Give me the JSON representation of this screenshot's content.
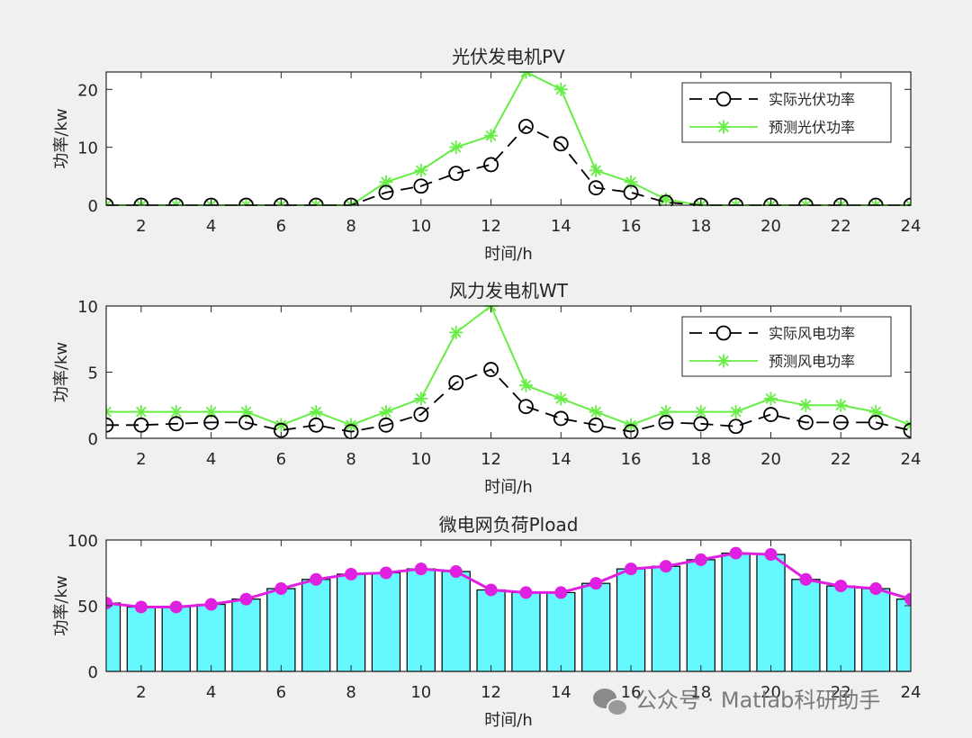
{
  "chart_data": [
    {
      "type": "line",
      "title": "光伏发电机PV",
      "xlabel": "时间/h",
      "ylabel": "功率/kw",
      "xlim": [
        1,
        24
      ],
      "ylim": [
        0,
        23
      ],
      "xticks": [
        2,
        4,
        6,
        8,
        10,
        12,
        14,
        16,
        18,
        20,
        22,
        24
      ],
      "yticks": [
        0,
        10,
        20
      ],
      "legend_position": "top-right",
      "x": [
        1,
        2,
        3,
        4,
        5,
        6,
        7,
        8,
        9,
        10,
        11,
        12,
        13,
        14,
        15,
        16,
        17,
        18,
        19,
        20,
        21,
        22,
        23,
        24
      ],
      "series": [
        {
          "name": "实际光伏功率",
          "marker": "circle",
          "line": "dashed",
          "color": "#000000",
          "values": [
            0,
            0,
            0,
            0,
            0,
            0,
            0,
            0,
            2.2,
            3.3,
            5.5,
            7.0,
            13.6,
            10.6,
            3.0,
            2.2,
            0.5,
            0,
            0,
            0,
            0,
            0,
            0,
            0
          ]
        },
        {
          "name": "预测光伏功率",
          "marker": "star",
          "line": "solid",
          "color": "#66ee44",
          "values": [
            0,
            0,
            0,
            0,
            0,
            0,
            0,
            0,
            4.0,
            6.0,
            10.0,
            12.0,
            23.0,
            20.0,
            6.0,
            4.0,
            1.0,
            0,
            0,
            0,
            0,
            0,
            0,
            0
          ]
        }
      ]
    },
    {
      "type": "line",
      "title": "风力发电机WT",
      "xlabel": "时间/h",
      "ylabel": "功率/kw",
      "xlim": [
        1,
        24
      ],
      "ylim": [
        0,
        10
      ],
      "xticks": [
        2,
        4,
        6,
        8,
        10,
        12,
        14,
        16,
        18,
        20,
        22,
        24
      ],
      "yticks": [
        0,
        5,
        10
      ],
      "legend_position": "top-right",
      "x": [
        1,
        2,
        3,
        4,
        5,
        6,
        7,
        8,
        9,
        10,
        11,
        12,
        13,
        14,
        15,
        16,
        17,
        18,
        19,
        20,
        21,
        22,
        23,
        24
      ],
      "series": [
        {
          "name": "实际风电功率",
          "marker": "circle",
          "line": "dashed",
          "color": "#000000",
          "values": [
            1.0,
            1.0,
            1.1,
            1.2,
            1.2,
            0.6,
            1.0,
            0.5,
            1.0,
            1.8,
            4.2,
            5.2,
            2.4,
            1.5,
            1.0,
            0.5,
            1.2,
            1.1,
            0.9,
            1.8,
            1.2,
            1.2,
            1.2,
            0.6
          ]
        },
        {
          "name": "预测风电功率",
          "marker": "star",
          "line": "solid",
          "color": "#66ee44",
          "values": [
            2.0,
            2.0,
            2.0,
            2.0,
            2.0,
            1.0,
            2.0,
            1.0,
            2.0,
            3.0,
            8.0,
            10.0,
            4.0,
            3.0,
            2.0,
            1.0,
            2.0,
            2.0,
            2.0,
            3.0,
            2.5,
            2.5,
            2.0,
            1.0
          ]
        }
      ]
    },
    {
      "type": "bar",
      "title": "微电网负荷Pload",
      "xlabel": "时间/h",
      "ylabel": "功率/kw",
      "xlim": [
        1,
        24
      ],
      "ylim": [
        0,
        100
      ],
      "xticks": [
        2,
        4,
        6,
        8,
        10,
        12,
        14,
        16,
        18,
        20,
        22,
        24
      ],
      "yticks": [
        0,
        50,
        100
      ],
      "x": [
        1,
        2,
        3,
        4,
        5,
        6,
        7,
        8,
        9,
        10,
        11,
        12,
        13,
        14,
        15,
        16,
        17,
        18,
        19,
        20,
        21,
        22,
        23,
        24
      ],
      "bar_color": "#66f8ff",
      "line_color": "#e020e0",
      "values": [
        52,
        49,
        49,
        51,
        55,
        63,
        70,
        74,
        75,
        78,
        76,
        62,
        60,
        60,
        67,
        78,
        80,
        85,
        90,
        89,
        70,
        65,
        63,
        55
      ]
    }
  ],
  "watermark": "公众号 · Matlab科研助手"
}
